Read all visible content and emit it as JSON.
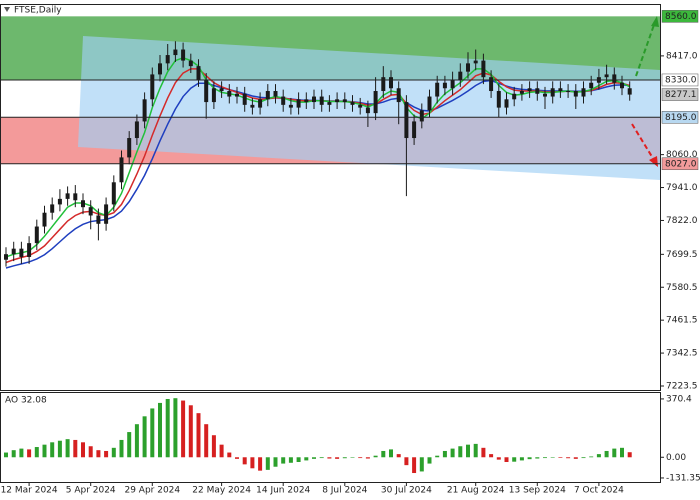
{
  "chart_data": [
    {
      "type": "candlestick",
      "title": "FTSE,Daily",
      "categories": [
        null,
        null,
        null,
        "12 Mar 2024",
        null,
        null,
        null,
        null,
        null,
        null,
        null,
        "5 Apr 2024",
        null,
        null,
        null,
        null,
        null,
        null,
        null,
        "29 Apr 2024",
        null,
        null,
        null,
        null,
        null,
        null,
        null,
        null,
        "22 May 2024",
        null,
        null,
        null,
        null,
        null,
        null,
        null,
        "14 Jun 2024",
        null,
        null,
        null,
        null,
        null,
        null,
        null,
        "8 Jul 2024",
        null,
        null,
        null,
        null,
        null,
        null,
        null,
        "30 Jul 2024",
        null,
        null,
        null,
        null,
        null,
        null,
        null,
        null,
        "21 Aug 2024",
        null,
        null,
        null,
        null,
        null,
        null,
        null,
        "13 Sep 2024",
        null,
        null,
        null,
        null,
        null,
        null,
        null,
        "7 Oct 2024",
        null,
        null,
        null,
        null
      ],
      "open": [
        7680,
        7700,
        7720,
        7690,
        7740,
        7800,
        7850,
        7880,
        7900,
        7920,
        7895,
        7870,
        7840,
        7810,
        7880,
        7960,
        8050,
        8120,
        8180,
        8260,
        8350,
        8390,
        8420,
        8440,
        8400,
        8380,
        8330,
        8250,
        8300,
        8290,
        8270,
        8280,
        8240,
        8230,
        8260,
        8290,
        8270,
        8240,
        8230,
        8260,
        8250,
        8270,
        8240,
        8250,
        8260,
        8250,
        8240,
        8230,
        8210,
        8290,
        8340,
        8300,
        8250,
        8120,
        8180,
        8220,
        8270,
        8320,
        8300,
        8330,
        8360,
        8390,
        8400,
        8340,
        8290,
        8230,
        8260,
        8280,
        8290,
        8300,
        8280,
        8270,
        8300,
        8290,
        8290,
        8270,
        8300,
        8320,
        8340,
        8350,
        8320,
        8300
      ],
      "high": [
        7725,
        7745,
        7745,
        7765,
        7825,
        7875,
        7905,
        7935,
        7945,
        7950,
        7920,
        7895,
        7865,
        7905,
        7985,
        8075,
        8145,
        8205,
        8285,
        8375,
        8420,
        8460,
        8470,
        8465,
        8425,
        8405,
        8355,
        8325,
        8325,
        8315,
        8305,
        8305,
        8265,
        8285,
        8315,
        8315,
        8295,
        8265,
        8285,
        8285,
        8295,
        8295,
        8275,
        8285,
        8285,
        8275,
        8265,
        8255,
        8340,
        8380,
        8365,
        8325,
        8275,
        8205,
        8245,
        8295,
        8345,
        8345,
        8360,
        8390,
        8430,
        8440,
        8425,
        8365,
        8315,
        8285,
        8305,
        8315,
        8325,
        8325,
        8305,
        8325,
        8325,
        8315,
        8315,
        8325,
        8345,
        8370,
        8385,
        8375,
        8345,
        8325
      ],
      "low": [
        7655,
        7675,
        7665,
        7665,
        7715,
        7775,
        7825,
        7855,
        7875,
        7870,
        7845,
        7790,
        7750,
        7785,
        7855,
        7935,
        8025,
        8095,
        8155,
        8235,
        8325,
        8365,
        8395,
        8375,
        8355,
        8305,
        8190,
        8225,
        8265,
        8245,
        8245,
        8215,
        8205,
        8205,
        8235,
        8245,
        8215,
        8205,
        8205,
        8225,
        8225,
        8215,
        8215,
        8225,
        8225,
        8215,
        8205,
        8160,
        8185,
        8265,
        8275,
        8170,
        7910,
        8095,
        8155,
        8195,
        8245,
        8275,
        8275,
        8305,
        8335,
        8365,
        8315,
        8265,
        8195,
        8205,
        8235,
        8255,
        8265,
        8255,
        8225,
        8245,
        8265,
        8265,
        8225,
        8245,
        8275,
        8295,
        8315,
        8295,
        8275,
        8255
      ],
      "close": [
        7700,
        7720,
        7690,
        7740,
        7800,
        7850,
        7880,
        7900,
        7920,
        7895,
        7870,
        7840,
        7810,
        7880,
        7960,
        8050,
        8120,
        8180,
        8260,
        8350,
        8390,
        8420,
        8440,
        8400,
        8380,
        8330,
        8250,
        8300,
        8290,
        8270,
        8280,
        8240,
        8230,
        8260,
        8290,
        8270,
        8240,
        8230,
        8260,
        8250,
        8270,
        8240,
        8250,
        8260,
        8250,
        8240,
        8230,
        8210,
        8290,
        8340,
        8300,
        8250,
        8120,
        8180,
        8220,
        8270,
        8320,
        8300,
        8330,
        8360,
        8390,
        8400,
        8340,
        8290,
        8230,
        8260,
        8280,
        8290,
        8300,
        8280,
        8270,
        8300,
        8290,
        8290,
        8270,
        8300,
        8320,
        8340,
        8350,
        8320,
        8300,
        8277.1
      ],
      "color": "#1a1a1a",
      "overlays": [
        {
          "color": "#1f3fbf",
          "values": [
            7650,
            7658,
            7665,
            7672,
            7683,
            7698,
            7720,
            7745,
            7770,
            7792,
            7808,
            7818,
            7822,
            7825,
            7835,
            7856,
            7890,
            7935,
            7985,
            8045,
            8110,
            8170,
            8225,
            8270,
            8300,
            8318,
            8318,
            8310,
            8302,
            8295,
            8288,
            8280,
            8272,
            8267,
            8265,
            8265,
            8264,
            8261,
            8258,
            8256,
            8256,
            8255,
            8254,
            8254,
            8253,
            8251,
            8248,
            8243,
            8243,
            8250,
            8260,
            8264,
            8248,
            8232,
            8220,
            8218,
            8228,
            8242,
            8256,
            8272,
            8290,
            8310,
            8325,
            8328,
            8318,
            8308,
            8300,
            8296,
            8294,
            8293,
            8291,
            8290,
            8290,
            8290,
            8289,
            8289,
            8291,
            8297,
            8305,
            8311,
            8312,
            8310
          ]
        },
        {
          "color": "#d42a2a",
          "values": [
            7670,
            7680,
            7688,
            7695,
            7710,
            7730,
            7760,
            7790,
            7820,
            7840,
            7852,
            7855,
            7845,
            7840,
            7850,
            7880,
            7930,
            7990,
            8055,
            8130,
            8200,
            8265,
            8320,
            8355,
            8370,
            8370,
            8345,
            8320,
            8305,
            8295,
            8285,
            8275,
            8265,
            8260,
            8262,
            8265,
            8265,
            8260,
            8256,
            8254,
            8255,
            8255,
            8253,
            8253,
            8252,
            8250,
            8246,
            8238,
            8242,
            8260,
            8275,
            8278,
            8245,
            8220,
            8205,
            8210,
            8232,
            8255,
            8275,
            8295,
            8320,
            8345,
            8355,
            8348,
            8325,
            8305,
            8293,
            8290,
            8290,
            8290,
            8287,
            8287,
            8288,
            8289,
            8287,
            8288,
            8292,
            8302,
            8314,
            8320,
            8318,
            8310
          ]
        },
        {
          "color": "#22c03a",
          "values": [
            7690,
            7700,
            7705,
            7712,
            7735,
            7765,
            7800,
            7835,
            7870,
            7885,
            7885,
            7875,
            7850,
            7840,
            7870,
            7920,
            7995,
            8070,
            8140,
            8230,
            8300,
            8360,
            8400,
            8410,
            8400,
            8380,
            8330,
            8300,
            8285,
            8280,
            8275,
            8265,
            8255,
            8250,
            8262,
            8270,
            8265,
            8255,
            8250,
            8250,
            8255,
            8255,
            8252,
            8252,
            8252,
            8248,
            8242,
            8232,
            8245,
            8275,
            8290,
            8285,
            8230,
            8200,
            8190,
            8210,
            8250,
            8280,
            8300,
            8320,
            8345,
            8370,
            8370,
            8350,
            8310,
            8285,
            8275,
            8278,
            8285,
            8288,
            8284,
            8285,
            8288,
            8290,
            8286,
            8288,
            8295,
            8310,
            8325,
            8328,
            8320,
            8305
          ]
        }
      ],
      "zones": [
        {
          "low": 8330,
          "high": 8560,
          "color": "#6db86d"
        },
        {
          "low": 8027,
          "high": 8195,
          "color": "#f39a9a"
        }
      ],
      "levels": [
        {
          "value": 8560,
          "label": "8560.0",
          "box_color": "#3cb83c",
          "line": false
        },
        {
          "value": 8330,
          "label": "8330.0",
          "box_color": "#ffffff",
          "line": true
        },
        {
          "value": 8277.1,
          "label": "8277.1",
          "box_color": "#c8c8c8",
          "line": false
        },
        {
          "value": 8195,
          "label": "8195.0",
          "box_color": "#b8d8f0",
          "line": true
        },
        {
          "value": 8027,
          "label": "8027.0",
          "box_color": "#f39a9a",
          "line": true
        }
      ],
      "ylim": [
        7209,
        8601
      ],
      "yticks": [
        7223.5,
        7342.5,
        7461.5,
        7580.5,
        7699.5,
        {
          "value": 7822,
          "label": "7822.0"
        },
        {
          "value": 7941,
          "label": "7941.0"
        },
        {
          "value": 8060,
          "label": "8060.0"
        },
        {
          "value": 8417,
          "label": "8417.0"
        }
      ]
    },
    {
      "type": "bar",
      "title": "AO 32.08",
      "values": [
        30,
        45,
        55,
        50,
        65,
        80,
        95,
        105,
        115,
        110,
        95,
        70,
        45,
        40,
        60,
        110,
        160,
        210,
        260,
        310,
        345,
        370,
        375,
        360,
        330,
        280,
        210,
        140,
        80,
        30,
        -10,
        -45,
        -70,
        -85,
        -80,
        -60,
        -40,
        -35,
        -30,
        -20,
        -10,
        -5,
        -8,
        -10,
        -6,
        -3,
        -5,
        -8,
        10,
        40,
        50,
        20,
        -50,
        -100,
        -90,
        -40,
        10,
        40,
        55,
        70,
        80,
        85,
        60,
        20,
        -15,
        -30,
        -28,
        -20,
        -12,
        -8,
        -5,
        -3,
        -4,
        -6,
        -10,
        -5,
        5,
        20,
        40,
        55,
        60,
        32.08
      ],
      "up_color": "#2ca02c",
      "down_color": "#d62020",
      "ylim": [
        -157,
        408
      ],
      "yticks": [
        370.4,
        {
          "value": 0,
          "label": "0.00"
        },
        -131.35
      ]
    }
  ]
}
